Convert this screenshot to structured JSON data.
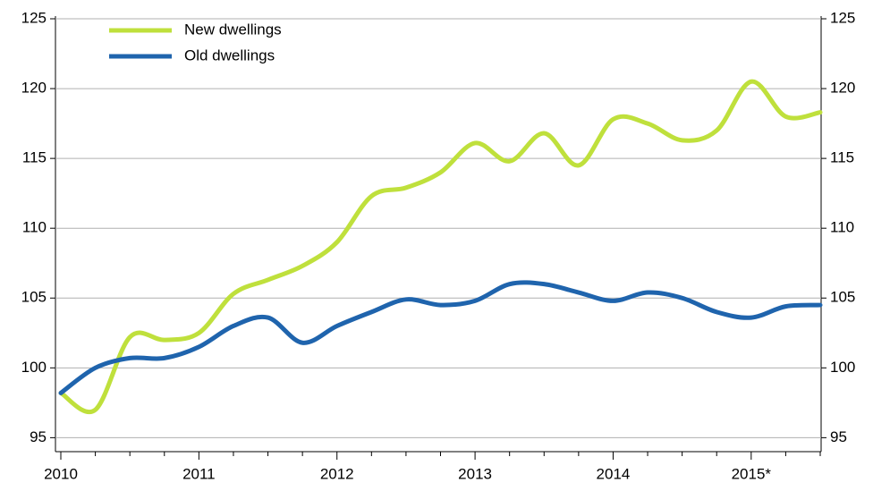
{
  "chart_data": {
    "type": "line",
    "categories": [
      "2010",
      null,
      null,
      null,
      "2011",
      null,
      null,
      null,
      "2012",
      null,
      null,
      null,
      "2013",
      null,
      null,
      null,
      "2014",
      null,
      null,
      null,
      "2015*",
      null,
      null
    ],
    "series": [
      {
        "name": "New dwellings",
        "color": "#bfe03c",
        "values": [
          98.2,
          97.0,
          102.2,
          102.0,
          102.5,
          105.3,
          106.3,
          107.3,
          109.0,
          112.3,
          112.9,
          114.0,
          116.1,
          114.8,
          116.8,
          114.5,
          117.8,
          117.5,
          116.3,
          117.0,
          120.5,
          118.0,
          118.3
        ]
      },
      {
        "name": "Old dwellings",
        "color": "#1f64ad",
        "values": [
          98.2,
          100.0,
          100.7,
          100.7,
          101.5,
          103.0,
          103.6,
          101.8,
          103.0,
          104.0,
          104.9,
          104.5,
          104.8,
          106.0,
          106.0,
          105.4,
          104.8,
          105.4,
          105.0,
          104.0,
          103.6,
          104.4,
          104.5
        ]
      }
    ],
    "ylim": [
      94,
      125
    ],
    "yticks": [
      95,
      100,
      105,
      110,
      115,
      120,
      125
    ],
    "grid": true,
    "legend": "top-left"
  }
}
